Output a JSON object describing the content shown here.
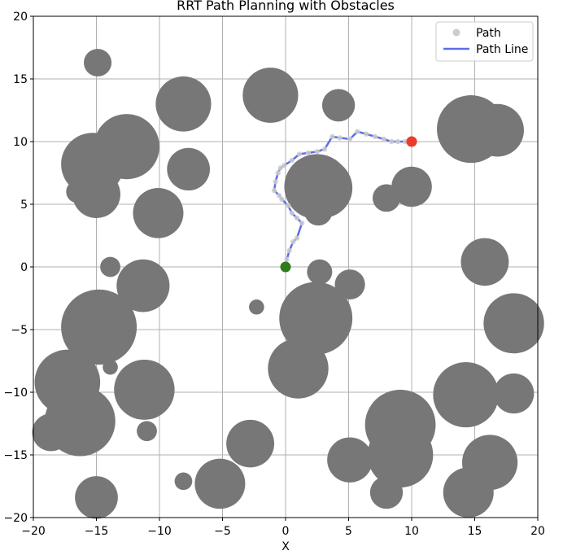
{
  "chart_data": {
    "type": "scatter",
    "title": "RRT Path Planning with Obstacles",
    "xlabel": "X",
    "ylabel": "",
    "xlim": [
      -20,
      20
    ],
    "ylim": [
      -20,
      20
    ],
    "xticks": [
      -20,
      -15,
      -10,
      -5,
      0,
      5,
      10,
      15,
      20
    ],
    "yticks": [
      -20,
      -15,
      -10,
      -5,
      0,
      5,
      10,
      15,
      20
    ],
    "grid": true,
    "legend_position": "top-right",
    "legend": [
      {
        "label": "Path",
        "marker": "dot",
        "color": "#cccccc"
      },
      {
        "label": "Path Line",
        "marker": "line",
        "color": "#5b6ee8"
      }
    ],
    "obstacle_color": "#777777",
    "obstacles": [
      {
        "x": -14.9,
        "y": 16.3,
        "r": 1.1
      },
      {
        "x": -8.1,
        "y": 13.0,
        "r": 2.2
      },
      {
        "x": -1.2,
        "y": 13.7,
        "r": 2.2
      },
      {
        "x": 4.2,
        "y": 12.9,
        "r": 1.3
      },
      {
        "x": 14.7,
        "y": 11.0,
        "r": 2.7
      },
      {
        "x": 16.8,
        "y": 10.9,
        "r": 2.1
      },
      {
        "x": -12.6,
        "y": 9.6,
        "r": 2.6
      },
      {
        "x": -15.3,
        "y": 8.2,
        "r": 2.5
      },
      {
        "x": -7.7,
        "y": 7.8,
        "r": 1.7
      },
      {
        "x": -16.5,
        "y": 6.0,
        "r": 0.9
      },
      {
        "x": -15.0,
        "y": 5.8,
        "r": 1.9
      },
      {
        "x": -10.1,
        "y": 4.3,
        "r": 2.0
      },
      {
        "x": 2.5,
        "y": 6.4,
        "r": 2.6
      },
      {
        "x": 2.9,
        "y": 6.3,
        "r": 2.4
      },
      {
        "x": 2.6,
        "y": 4.4,
        "r": 1.1
      },
      {
        "x": 10.0,
        "y": 6.4,
        "r": 1.6
      },
      {
        "x": 8.0,
        "y": 5.5,
        "r": 1.1
      },
      {
        "x": 15.8,
        "y": 0.4,
        "r": 1.9
      },
      {
        "x": -13.9,
        "y": 0.0,
        "r": 0.8
      },
      {
        "x": -11.3,
        "y": -1.5,
        "r": 2.1
      },
      {
        "x": 2.7,
        "y": -0.4,
        "r": 1.0
      },
      {
        "x": 5.1,
        "y": -1.4,
        "r": 1.2
      },
      {
        "x": -2.3,
        "y": -3.2,
        "r": 0.6
      },
      {
        "x": -14.8,
        "y": -4.8,
        "r": 3.0
      },
      {
        "x": 2.4,
        "y": -4.1,
        "r": 2.9
      },
      {
        "x": 18.1,
        "y": -4.5,
        "r": 2.4
      },
      {
        "x": -13.9,
        "y": -8.0,
        "r": 0.6
      },
      {
        "x": 1.0,
        "y": -8.1,
        "r": 2.4
      },
      {
        "x": -17.3,
        "y": -9.2,
        "r": 2.6
      },
      {
        "x": -11.2,
        "y": -9.8,
        "r": 2.4
      },
      {
        "x": 14.3,
        "y": -10.2,
        "r": 2.6
      },
      {
        "x": 18.1,
        "y": -10.1,
        "r": 1.6
      },
      {
        "x": -16.3,
        "y": -12.3,
        "r": 2.8
      },
      {
        "x": -18.6,
        "y": -13.2,
        "r": 1.5
      },
      {
        "x": -11.0,
        "y": -13.1,
        "r": 0.8
      },
      {
        "x": 9.1,
        "y": -12.6,
        "r": 2.8
      },
      {
        "x": 9.1,
        "y": -15.0,
        "r": 2.6
      },
      {
        "x": -2.8,
        "y": -14.1,
        "r": 1.9
      },
      {
        "x": 5.1,
        "y": -15.4,
        "r": 1.8
      },
      {
        "x": 16.2,
        "y": -15.6,
        "r": 2.2
      },
      {
        "x": 8.0,
        "y": -18.0,
        "r": 1.3
      },
      {
        "x": 14.5,
        "y": -18.0,
        "r": 2.0
      },
      {
        "x": -8.1,
        "y": -17.1,
        "r": 0.7
      },
      {
        "x": -5.2,
        "y": -17.3,
        "r": 2.0
      },
      {
        "x": -15.0,
        "y": -18.4,
        "r": 1.7
      }
    ],
    "path": {
      "x": [
        0.0,
        0.1,
        0.3,
        0.6,
        0.9,
        1.3,
        0.9,
        0.5,
        0.2,
        -0.3,
        -0.5,
        -0.9,
        -0.8,
        -0.6,
        -0.4,
        -0.1,
        0.5,
        1.1,
        1.8,
        2.5,
        3.1,
        3.7,
        4.3,
        5.1,
        5.7,
        6.4,
        7.1,
        7.8,
        8.4,
        8.9,
        9.5,
        10.0
      ],
      "y": [
        0.0,
        0.6,
        1.3,
        2.0,
        2.3,
        3.5,
        3.9,
        4.3,
        4.9,
        5.4,
        5.7,
        6.1,
        6.8,
        7.5,
        7.9,
        8.1,
        8.5,
        9.0,
        9.1,
        9.2,
        9.4,
        10.4,
        10.3,
        10.2,
        10.8,
        10.6,
        10.4,
        10.2,
        10.0,
        10.0,
        10.0,
        10.0
      ]
    },
    "start": {
      "x": 0,
      "y": 0,
      "color": "#2e7d1a"
    },
    "goal": {
      "x": 10,
      "y": 10,
      "color": "#ea3b2c"
    },
    "path_line_color": "#5b6ee8",
    "path_dot_color": "#cccccc"
  }
}
